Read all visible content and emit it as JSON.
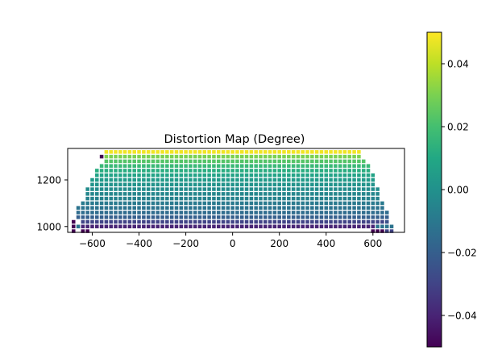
{
  "chart_data": [
    {
      "type": "heatmap",
      "title": "Distortion Map (Degree)",
      "xlabel": "",
      "ylabel": "",
      "xlim": [
        -705,
        735
      ],
      "ylim": [
        975,
        1335
      ],
      "xticks": [
        -600,
        -400,
        -200,
        0,
        200,
        400,
        600
      ],
      "xtick_labels": [
        "−600",
        "−400",
        "−200",
        "0",
        "200",
        "400",
        "600"
      ],
      "yticks": [
        1000,
        1200
      ],
      "ytick_labels": [
        "1000",
        "1200"
      ],
      "grid": false,
      "colormap": "viridis",
      "color_range": [
        -0.05,
        0.05
      ],
      "colorbar_ticks": [
        0.04,
        0.02,
        0.0,
        -0.02,
        -0.04
      ],
      "colorbar_tick_labels": [
        "0.04",
        "0.02",
        "0.00",
        "−0.02",
        "−0.04"
      ],
      "x_step": 20,
      "y_step": 20,
      "rows": [
        {
          "y": 1320,
          "x_min": -540,
          "x_max": 540,
          "value": 0.048
        },
        {
          "y": 1300,
          "x_min": -540,
          "x_max": 540,
          "value": 0.03
        },
        {
          "y": 1280,
          "x_min": -540,
          "x_max": 560,
          "value": 0.023
        },
        {
          "y": 1260,
          "x_min": -560,
          "x_max": 580,
          "value": 0.017
        },
        {
          "y": 1240,
          "x_min": -580,
          "x_max": 580,
          "value": 0.012
        },
        {
          "y": 1220,
          "x_min": -580,
          "x_max": 600,
          "value": 0.008
        },
        {
          "y": 1200,
          "x_min": -600,
          "x_max": 600,
          "value": 0.004
        },
        {
          "y": 1180,
          "x_min": -600,
          "x_max": 600,
          "value": 0.001
        },
        {
          "y": 1160,
          "x_min": -620,
          "x_max": 620,
          "value": -0.002
        },
        {
          "y": 1140,
          "x_min": -620,
          "x_max": 620,
          "value": -0.004
        },
        {
          "y": 1120,
          "x_min": -620,
          "x_max": 620,
          "value": -0.006
        },
        {
          "y": 1100,
          "x_min": -640,
          "x_max": 640,
          "value": -0.009
        },
        {
          "y": 1080,
          "x_min": -660,
          "x_max": 640,
          "value": -0.012
        },
        {
          "y": 1060,
          "x_min": -660,
          "x_max": 660,
          "value": -0.015
        },
        {
          "y": 1040,
          "x_min": -660,
          "x_max": 660,
          "value": -0.02
        },
        {
          "y": 1020,
          "x_min": -680,
          "x_max": 680,
          "value": -0.03
        },
        {
          "y": 1000,
          "x_min": -680,
          "x_max": 680,
          "value": -0.04
        },
        {
          "y": 980,
          "x_min": -680,
          "x_max": 680,
          "value": -0.05
        }
      ],
      "overrides": [
        {
          "x": -560,
          "y": 1300,
          "value": -0.05
        },
        {
          "x": -680,
          "y": 1020,
          "value": -0.05
        },
        {
          "x": 660,
          "y": 1020,
          "value": -0.025
        },
        {
          "x": -680,
          "y": 1000,
          "value": -0.05
        },
        {
          "x": -660,
          "y": 1000,
          "value": -0.012
        },
        {
          "x": 620,
          "y": 1000,
          "value": -0.012
        },
        {
          "x": 640,
          "y": 1000,
          "value": -0.012
        },
        {
          "x": 660,
          "y": 1000,
          "value": -0.012
        },
        {
          "x": 680,
          "y": 1000,
          "value": -0.012
        },
        {
          "x": -640,
          "y": 980,
          "value": -0.05
        },
        {
          "x": -620,
          "y": 980,
          "value": -0.05
        },
        {
          "x": 600,
          "y": 980,
          "value": -0.05
        },
        {
          "x": 620,
          "y": 980,
          "value": -0.05
        },
        {
          "x": 640,
          "y": 980,
          "value": -0.05
        },
        {
          "x": 660,
          "y": 980,
          "value": -0.03
        },
        {
          "x": 680,
          "y": 980,
          "value": -0.03
        }
      ],
      "exclude": [
        {
          "x": -660,
          "y": 980
        },
        {
          "x": -600,
          "y": 980
        },
        {
          "x": -580,
          "y": 980
        },
        {
          "x": -560,
          "y": 980
        },
        {
          "x": -540,
          "y": 980
        },
        {
          "x": -520,
          "y": 980
        },
        {
          "x": -500,
          "y": 980
        },
        {
          "x": -480,
          "y": 980
        },
        {
          "x": -460,
          "y": 980
        },
        {
          "x": -440,
          "y": 980
        },
        {
          "x": -420,
          "y": 980
        },
        {
          "x": -400,
          "y": 980
        },
        {
          "x": -380,
          "y": 980
        },
        {
          "x": -360,
          "y": 980
        },
        {
          "x": -340,
          "y": 980
        },
        {
          "x": -320,
          "y": 980
        },
        {
          "x": -300,
          "y": 980
        },
        {
          "x": -280,
          "y": 980
        },
        {
          "x": -260,
          "y": 980
        },
        {
          "x": -240,
          "y": 980
        },
        {
          "x": -220,
          "y": 980
        },
        {
          "x": -200,
          "y": 980
        },
        {
          "x": -180,
          "y": 980
        },
        {
          "x": -160,
          "y": 980
        },
        {
          "x": -140,
          "y": 980
        },
        {
          "x": -120,
          "y": 980
        },
        {
          "x": -100,
          "y": 980
        },
        {
          "x": -80,
          "y": 980
        },
        {
          "x": -60,
          "y": 980
        },
        {
          "x": -40,
          "y": 980
        },
        {
          "x": -20,
          "y": 980
        },
        {
          "x": 0,
          "y": 980
        },
        {
          "x": 20,
          "y": 980
        },
        {
          "x": 40,
          "y": 980
        },
        {
          "x": 60,
          "y": 980
        },
        {
          "x": 80,
          "y": 980
        },
        {
          "x": 100,
          "y": 980
        },
        {
          "x": 120,
          "y": 980
        },
        {
          "x": 140,
          "y": 980
        },
        {
          "x": 160,
          "y": 980
        },
        {
          "x": 180,
          "y": 980
        },
        {
          "x": 200,
          "y": 980
        },
        {
          "x": 220,
          "y": 980
        },
        {
          "x": 240,
          "y": 980
        },
        {
          "x": 260,
          "y": 980
        },
        {
          "x": 280,
          "y": 980
        },
        {
          "x": 300,
          "y": 980
        },
        {
          "x": 320,
          "y": 980
        },
        {
          "x": 340,
          "y": 980
        },
        {
          "x": 360,
          "y": 980
        },
        {
          "x": 380,
          "y": 980
        },
        {
          "x": 400,
          "y": 980
        },
        {
          "x": 420,
          "y": 980
        },
        {
          "x": 440,
          "y": 980
        },
        {
          "x": 460,
          "y": 980
        },
        {
          "x": 480,
          "y": 980
        },
        {
          "x": 500,
          "y": 980
        },
        {
          "x": 520,
          "y": 980
        },
        {
          "x": 540,
          "y": 980
        },
        {
          "x": 560,
          "y": 980
        },
        {
          "x": 580,
          "y": 980
        },
        {
          "x": -680,
          "y": 1040
        },
        {
          "x": -680,
          "y": 1060
        },
        {
          "x": -660,
          "y": 1020
        },
        {
          "x": 680,
          "y": 1020
        }
      ]
    }
  ]
}
